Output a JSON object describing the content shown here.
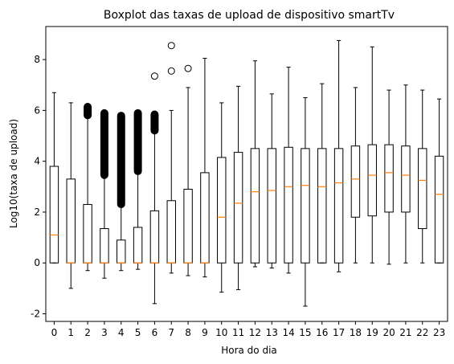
{
  "chart_data": {
    "type": "boxplot",
    "title": "Boxplot das taxas de upload de dispositivo smartTv",
    "xlabel": "Hora do dia",
    "ylabel": "Log10(taxa de upload)",
    "ylim": [
      -2.3,
      9.3
    ],
    "yticks": [
      -2,
      0,
      2,
      4,
      6,
      8
    ],
    "grid": false,
    "colors": {
      "box": "#000000",
      "median": "#ff7f0e",
      "flier": "#000000"
    },
    "categories": [
      "0",
      "1",
      "2",
      "3",
      "4",
      "5",
      "6",
      "7",
      "8",
      "9",
      "10",
      "11",
      "12",
      "13",
      "14",
      "15",
      "16",
      "17",
      "18",
      "19",
      "20",
      "21",
      "22",
      "23"
    ],
    "boxes": [
      {
        "whislo": 0.0,
        "q1": 0.0,
        "med": 1.1,
        "q3": 3.8,
        "whishi": 6.7,
        "fliers": []
      },
      {
        "whislo": -1.0,
        "q1": 0.0,
        "med": 0.0,
        "q3": 3.3,
        "whishi": 6.3,
        "fliers": []
      },
      {
        "whislo": -0.3,
        "q1": 0.0,
        "med": 0.0,
        "q3": 2.3,
        "whishi": 5.7,
        "fliers": [],
        "flier_band": [
          5.7,
          6.25
        ]
      },
      {
        "whislo": -0.6,
        "q1": 0.0,
        "med": 0.0,
        "q3": 1.35,
        "whishi": 3.35,
        "fliers": [],
        "flier_band": [
          3.35,
          6.0
        ]
      },
      {
        "whislo": -0.3,
        "q1": 0.0,
        "med": 0.0,
        "q3": 0.9,
        "whishi": 2.2,
        "fliers": [],
        "flier_band": [
          2.2,
          5.9
        ]
      },
      {
        "whislo": -0.25,
        "q1": 0.0,
        "med": 0.0,
        "q3": 1.4,
        "whishi": 3.5,
        "fliers": [],
        "flier_band": [
          3.5,
          6.0
        ]
      },
      {
        "whislo": -1.6,
        "q1": 0.0,
        "med": 0.0,
        "q3": 2.05,
        "whishi": 5.1,
        "fliers": [
          7.35
        ],
        "flier_band": [
          5.1,
          5.95
        ]
      },
      {
        "whislo": -0.4,
        "q1": 0.0,
        "med": 0.0,
        "q3": 2.45,
        "whishi": 6.0,
        "fliers": [
          7.55,
          8.55
        ]
      },
      {
        "whislo": -0.5,
        "q1": 0.0,
        "med": 0.0,
        "q3": 2.9,
        "whishi": 6.9,
        "fliers": [
          7.65
        ]
      },
      {
        "whislo": -0.55,
        "q1": 0.0,
        "med": 0.0,
        "q3": 3.55,
        "whishi": 8.05,
        "fliers": []
      },
      {
        "whislo": -1.15,
        "q1": 0.0,
        "med": 1.8,
        "q3": 4.15,
        "whishi": 6.3,
        "fliers": []
      },
      {
        "whislo": -1.05,
        "q1": 0.0,
        "med": 2.35,
        "q3": 4.35,
        "whishi": 6.95,
        "fliers": []
      },
      {
        "whislo": -0.15,
        "q1": 0.0,
        "med": 2.8,
        "q3": 4.5,
        "whishi": 7.95,
        "fliers": []
      },
      {
        "whislo": -0.2,
        "q1": 0.0,
        "med": 2.85,
        "q3": 4.5,
        "whishi": 6.65,
        "fliers": []
      },
      {
        "whislo": -0.4,
        "q1": 0.0,
        "med": 3.0,
        "q3": 4.55,
        "whishi": 7.7,
        "fliers": []
      },
      {
        "whislo": -1.7,
        "q1": 0.0,
        "med": 3.05,
        "q3": 4.5,
        "whishi": 6.5,
        "fliers": []
      },
      {
        "whislo": 0.0,
        "q1": 0.0,
        "med": 3.0,
        "q3": 4.5,
        "whishi": 7.05,
        "fliers": []
      },
      {
        "whislo": -0.35,
        "q1": 0.0,
        "med": 3.15,
        "q3": 4.5,
        "whishi": 8.75,
        "fliers": []
      },
      {
        "whislo": 0.0,
        "q1": 1.8,
        "med": 3.3,
        "q3": 4.6,
        "whishi": 6.9,
        "fliers": []
      },
      {
        "whislo": 0.0,
        "q1": 1.85,
        "med": 3.45,
        "q3": 4.65,
        "whishi": 8.5,
        "fliers": []
      },
      {
        "whislo": -0.05,
        "q1": 2.0,
        "med": 3.55,
        "q3": 4.65,
        "whishi": 6.8,
        "fliers": []
      },
      {
        "whislo": 0.0,
        "q1": 2.0,
        "med": 3.45,
        "q3": 4.6,
        "whishi": 7.0,
        "fliers": []
      },
      {
        "whislo": 0.0,
        "q1": 1.35,
        "med": 3.25,
        "q3": 4.5,
        "whishi": 6.8,
        "fliers": []
      },
      {
        "whislo": 0.0,
        "q1": 0.0,
        "med": 2.7,
        "q3": 4.2,
        "whishi": 6.45,
        "fliers": []
      }
    ]
  }
}
